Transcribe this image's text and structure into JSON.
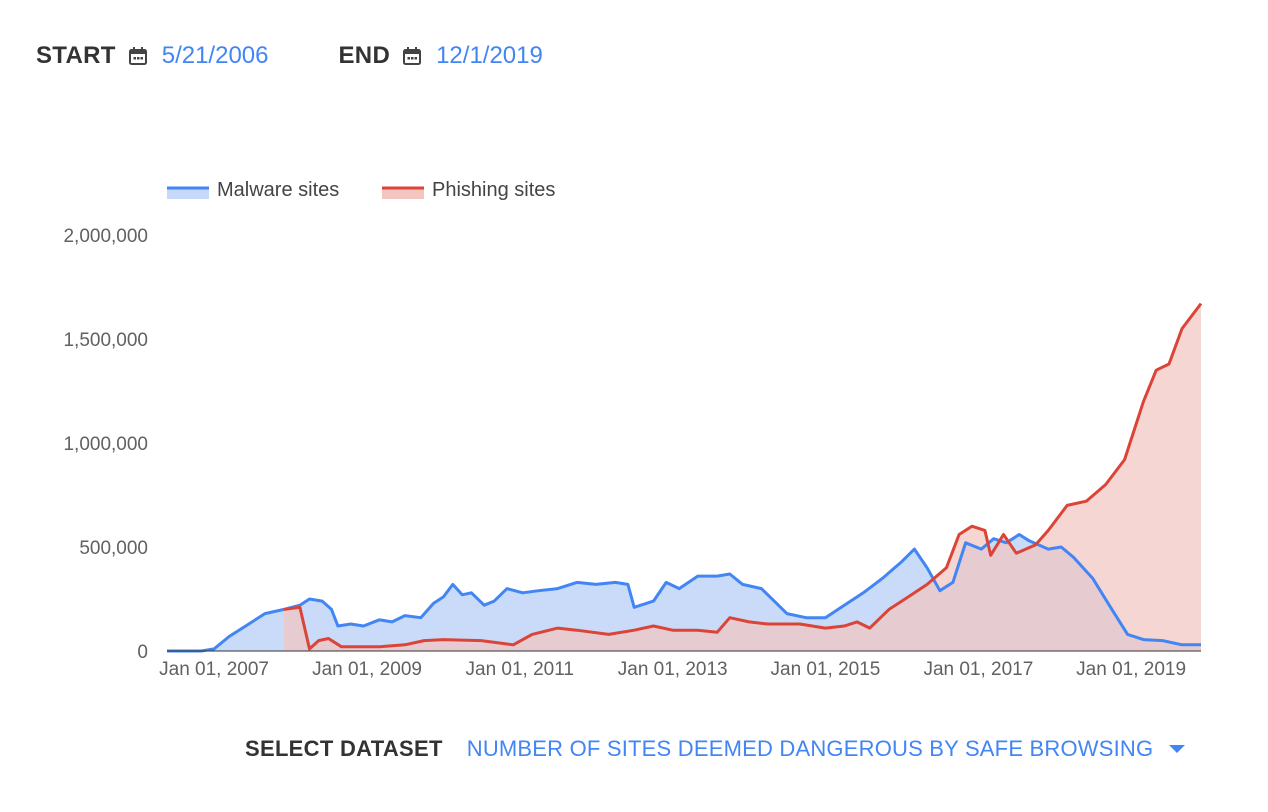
{
  "start": {
    "label": "START",
    "value": "5/21/2006"
  },
  "end": {
    "label": "END",
    "value": "12/1/2019"
  },
  "dataset": {
    "label": "SELECT DATASET",
    "value": "NUMBER OF SITES DEEMED DANGEROUS BY SAFE BROWSING"
  },
  "icons": {
    "calendar": "calendar-icon",
    "dropdown": "caret-down-icon"
  },
  "colors": {
    "malware": "#4285f4",
    "malware_fill": "#c6d9f8",
    "phishing": "#db4437",
    "phishing_fill": "#f2c5c1",
    "accent": "#4285f4"
  },
  "chart_data": {
    "type": "area",
    "xlim": [
      "2006-05-21",
      "2019-12-01"
    ],
    "ylim": [
      0,
      2000000
    ],
    "yticks": [
      0,
      500000,
      1000000,
      1500000,
      2000000
    ],
    "ytick_labels": [
      "0",
      "500,000",
      "1,000,000",
      "1,500,000",
      "2,000,000"
    ],
    "xticks": [
      "2007-01-01",
      "2009-01-01",
      "2011-01-01",
      "2013-01-01",
      "2015-01-01",
      "2017-01-01",
      "2019-01-01"
    ],
    "xtick_labels": [
      "Jan 01, 2007",
      "Jan 01, 2009",
      "Jan 01, 2011",
      "Jan 01, 2013",
      "Jan 01, 2015",
      "Jan 01, 2017",
      "Jan 01, 2019"
    ],
    "legend": "top-left",
    "grid": false,
    "series": [
      {
        "name": "Malware sites",
        "points": [
          [
            "2006-05-21",
            0
          ],
          [
            "2006-11-01",
            0
          ],
          [
            "2007-01-01",
            10000
          ],
          [
            "2007-03-15",
            70000
          ],
          [
            "2007-06-01",
            120000
          ],
          [
            "2007-09-01",
            180000
          ],
          [
            "2007-12-01",
            200000
          ],
          [
            "2008-02-15",
            220000
          ],
          [
            "2008-04-01",
            250000
          ],
          [
            "2008-06-01",
            240000
          ],
          [
            "2008-07-15",
            200000
          ],
          [
            "2008-08-15",
            120000
          ],
          [
            "2008-10-15",
            130000
          ],
          [
            "2008-12-15",
            120000
          ],
          [
            "2009-03-01",
            150000
          ],
          [
            "2009-05-01",
            140000
          ],
          [
            "2009-07-01",
            170000
          ],
          [
            "2009-09-15",
            160000
          ],
          [
            "2009-11-15",
            230000
          ],
          [
            "2010-01-01",
            260000
          ],
          [
            "2010-02-15",
            320000
          ],
          [
            "2010-04-01",
            270000
          ],
          [
            "2010-05-15",
            280000
          ],
          [
            "2010-07-15",
            220000
          ],
          [
            "2010-09-01",
            240000
          ],
          [
            "2010-11-01",
            300000
          ],
          [
            "2011-01-15",
            280000
          ],
          [
            "2011-04-01",
            290000
          ],
          [
            "2011-07-01",
            300000
          ],
          [
            "2011-10-01",
            330000
          ],
          [
            "2012-01-01",
            320000
          ],
          [
            "2012-04-01",
            330000
          ],
          [
            "2012-06-01",
            320000
          ],
          [
            "2012-07-01",
            210000
          ],
          [
            "2012-10-01",
            240000
          ],
          [
            "2012-12-01",
            330000
          ],
          [
            "2013-02-01",
            300000
          ],
          [
            "2013-05-01",
            360000
          ],
          [
            "2013-08-01",
            360000
          ],
          [
            "2013-10-01",
            370000
          ],
          [
            "2013-12-01",
            320000
          ],
          [
            "2014-03-01",
            300000
          ],
          [
            "2014-05-01",
            240000
          ],
          [
            "2014-07-01",
            180000
          ],
          [
            "2014-10-01",
            160000
          ],
          [
            "2015-01-01",
            160000
          ],
          [
            "2015-04-01",
            220000
          ],
          [
            "2015-07-01",
            280000
          ],
          [
            "2015-10-01",
            350000
          ],
          [
            "2016-01-01",
            430000
          ],
          [
            "2016-03-01",
            490000
          ],
          [
            "2016-05-01",
            400000
          ],
          [
            "2016-07-01",
            290000
          ],
          [
            "2016-09-01",
            330000
          ],
          [
            "2016-11-01",
            520000
          ],
          [
            "2017-01-15",
            490000
          ],
          [
            "2017-03-15",
            540000
          ],
          [
            "2017-05-15",
            520000
          ],
          [
            "2017-07-15",
            560000
          ],
          [
            "2017-09-01",
            530000
          ],
          [
            "2017-12-01",
            490000
          ],
          [
            "2018-02-01",
            500000
          ],
          [
            "2018-04-01",
            450000
          ],
          [
            "2018-07-01",
            350000
          ],
          [
            "2018-10-01",
            200000
          ],
          [
            "2018-12-15",
            80000
          ],
          [
            "2019-03-01",
            55000
          ],
          [
            "2019-06-01",
            50000
          ],
          [
            "2019-09-01",
            30000
          ],
          [
            "2019-12-01",
            30000
          ]
        ]
      },
      {
        "name": "Phishing sites",
        "points": [
          [
            "2007-12-01",
            200000
          ],
          [
            "2008-02-15",
            210000
          ],
          [
            "2008-04-01",
            10000
          ],
          [
            "2008-05-15",
            50000
          ],
          [
            "2008-07-01",
            60000
          ],
          [
            "2008-09-01",
            20000
          ],
          [
            "2009-03-01",
            20000
          ],
          [
            "2009-07-01",
            30000
          ],
          [
            "2009-10-01",
            50000
          ],
          [
            "2010-01-01",
            55000
          ],
          [
            "2010-07-01",
            50000
          ],
          [
            "2010-12-01",
            30000
          ],
          [
            "2011-03-01",
            80000
          ],
          [
            "2011-07-01",
            110000
          ],
          [
            "2011-10-01",
            100000
          ],
          [
            "2012-03-01",
            80000
          ],
          [
            "2012-07-01",
            100000
          ],
          [
            "2012-10-01",
            120000
          ],
          [
            "2013-01-01",
            100000
          ],
          [
            "2013-05-01",
            100000
          ],
          [
            "2013-08-01",
            90000
          ],
          [
            "2013-10-01",
            160000
          ],
          [
            "2014-01-01",
            140000
          ],
          [
            "2014-04-01",
            130000
          ],
          [
            "2014-09-01",
            130000
          ],
          [
            "2015-01-01",
            110000
          ],
          [
            "2015-04-01",
            120000
          ],
          [
            "2015-06-01",
            140000
          ],
          [
            "2015-08-01",
            110000
          ],
          [
            "2015-11-01",
            200000
          ],
          [
            "2016-02-01",
            260000
          ],
          [
            "2016-05-01",
            320000
          ],
          [
            "2016-08-01",
            400000
          ],
          [
            "2016-10-01",
            560000
          ],
          [
            "2016-12-01",
            600000
          ],
          [
            "2017-02-01",
            580000
          ],
          [
            "2017-03-01",
            460000
          ],
          [
            "2017-05-01",
            560000
          ],
          [
            "2017-07-01",
            470000
          ],
          [
            "2017-10-01",
            510000
          ],
          [
            "2017-12-01",
            580000
          ],
          [
            "2018-03-01",
            700000
          ],
          [
            "2018-06-01",
            720000
          ],
          [
            "2018-09-01",
            800000
          ],
          [
            "2018-12-01",
            920000
          ],
          [
            "2019-03-01",
            1200000
          ],
          [
            "2019-05-01",
            1350000
          ],
          [
            "2019-07-01",
            1380000
          ],
          [
            "2019-09-01",
            1550000
          ],
          [
            "2019-12-01",
            1670000
          ]
        ]
      }
    ]
  }
}
